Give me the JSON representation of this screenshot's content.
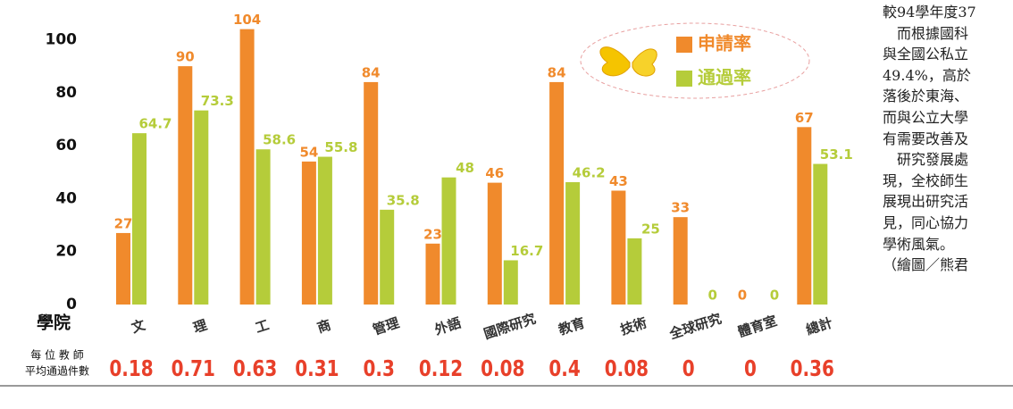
{
  "chart_data": {
    "type": "bar",
    "xlabel": "學院",
    "categories": [
      "文",
      "理",
      "工",
      "商",
      "管理",
      "外語",
      "國際研究",
      "教育",
      "技術",
      "全球研究",
      "體育室",
      "總計"
    ],
    "series": [
      {
        "name": "申請率",
        "color": "#f08a2c",
        "values": [
          27,
          90,
          104,
          54,
          84,
          23,
          46,
          84,
          43,
          33,
          0,
          67
        ]
      },
      {
        "name": "通過率",
        "color": "#b5cc3a",
        "values": [
          64.7,
          73.3,
          58.6,
          55.8,
          35.8,
          48,
          16.7,
          46.2,
          25,
          0,
          0,
          53.1
        ]
      }
    ],
    "ylim": [
      0,
      115
    ],
    "yticks": [
      0,
      20,
      40,
      60,
      80,
      100
    ],
    "grid": false,
    "per_teacher": {
      "label_1": "每 位 教 師",
      "label_2": "平均通過件數",
      "color": "#e8402a",
      "values": [
        0.18,
        0.71,
        0.63,
        0.31,
        0.3,
        0.12,
        0.08,
        0.4,
        0.08,
        0,
        0,
        0.36
      ]
    }
  },
  "side_text": {
    "lines": [
      "較94學年度37",
      "　而根據國科",
      "與全國公私立",
      "49.4%，高於",
      "落後於東海、",
      "而與公立大學",
      "有需要改善及",
      "　研究發展處",
      "現，全校師生",
      "展現出研究活",
      "見，同心協力",
      "學術風氣。",
      "（繪圖／熊君"
    ]
  }
}
